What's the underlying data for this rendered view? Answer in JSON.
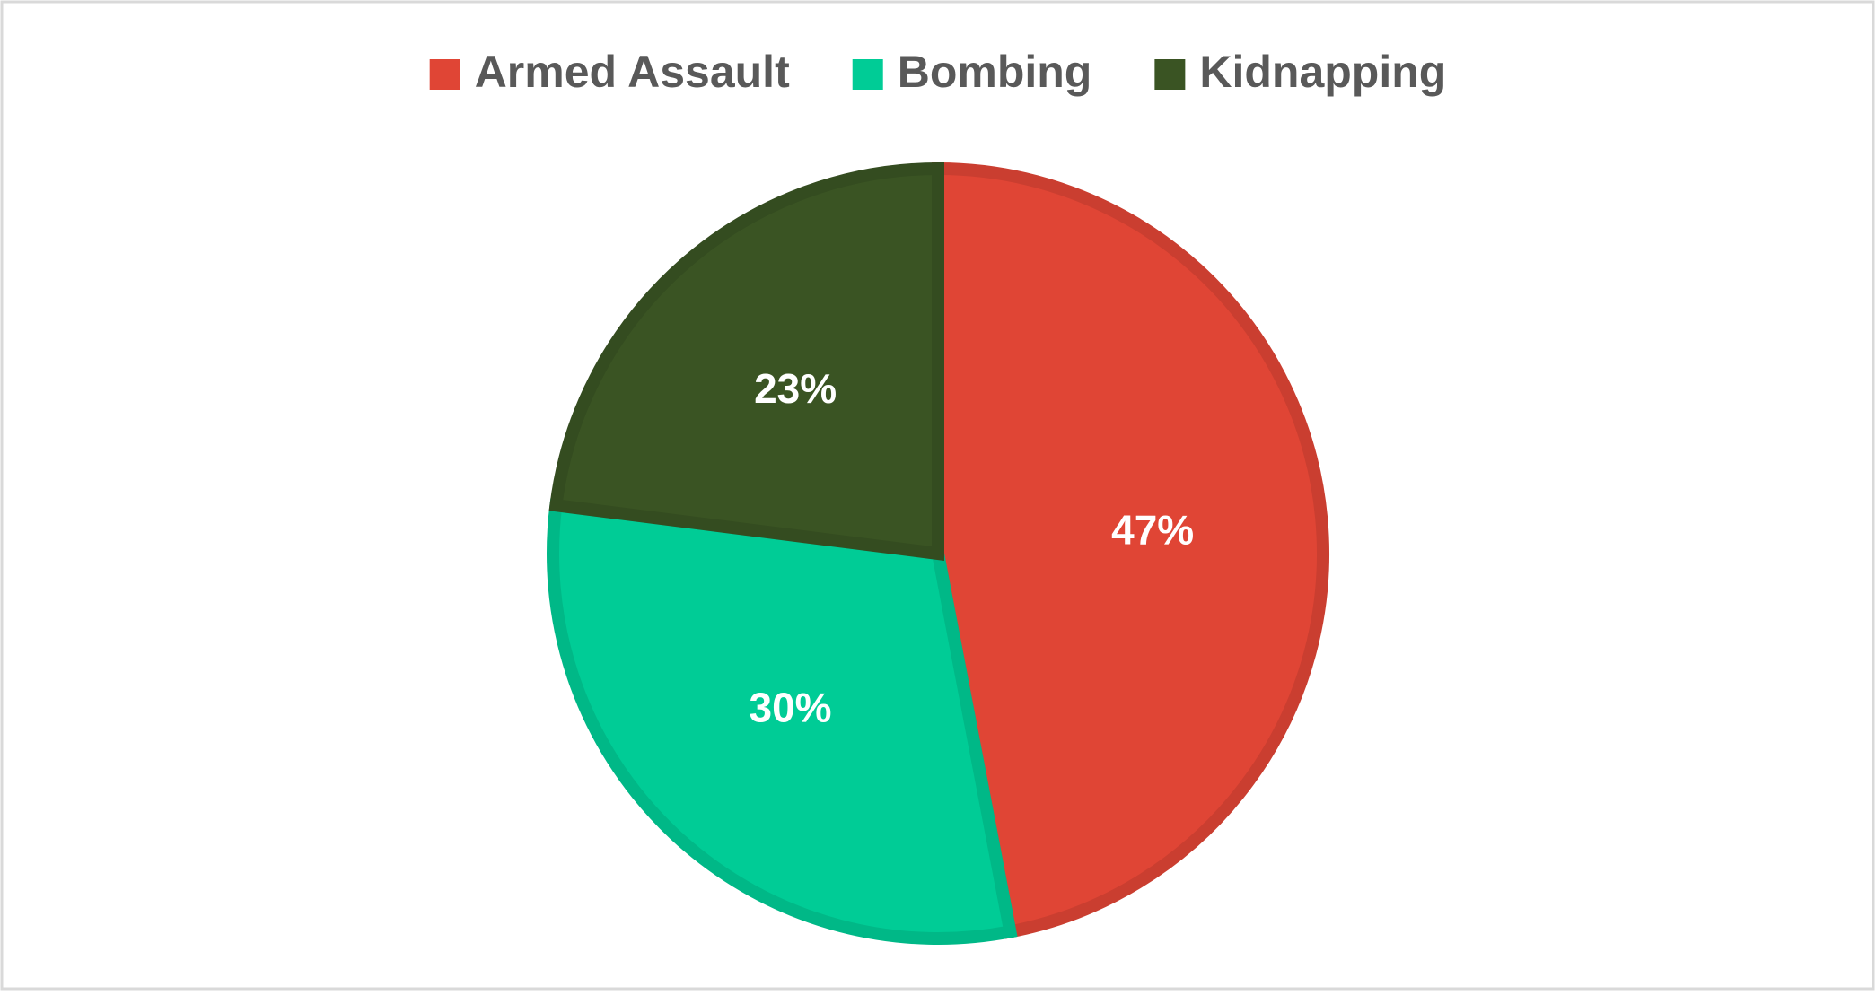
{
  "chart_data": {
    "type": "pie",
    "categories": [
      "Armed Assault",
      "Bombing",
      "Kidnapping"
    ],
    "values": [
      47,
      30,
      23
    ],
    "value_labels": [
      "47%",
      "30%",
      "23%"
    ],
    "colors": [
      "#e04535",
      "#00cc96",
      "#3a5423"
    ],
    "legend": "top"
  }
}
